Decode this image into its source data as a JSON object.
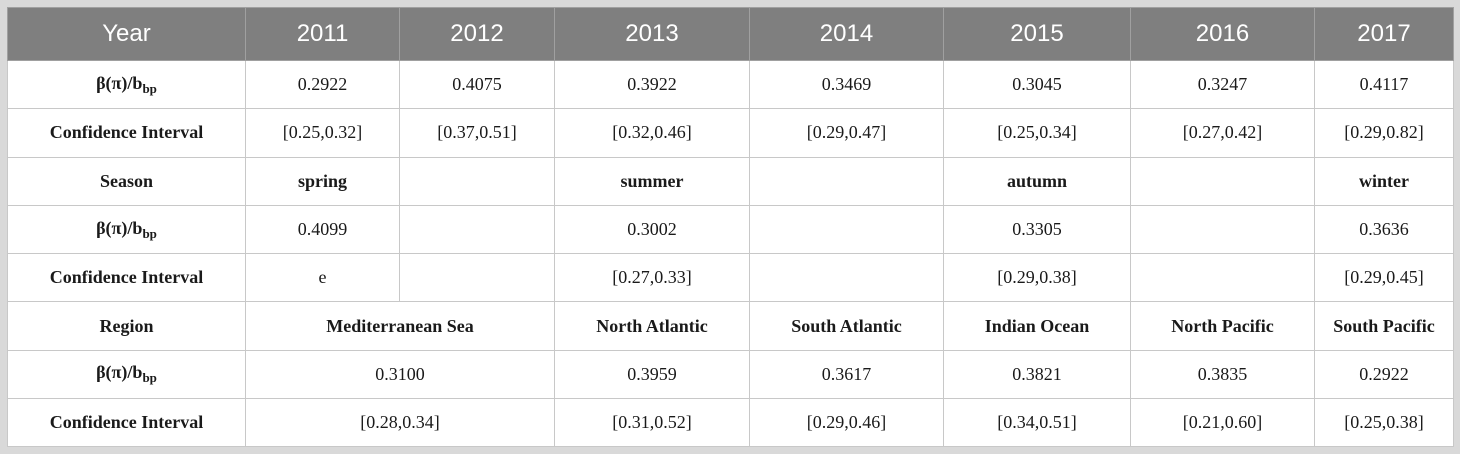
{
  "header": {
    "label": "Year",
    "years": [
      "2011",
      "2012",
      "2013",
      "2014",
      "2015",
      "2016",
      "2017"
    ]
  },
  "ratio_label": {
    "main": "β(π)/b",
    "sub": "bp"
  },
  "ci_label": "Confidence Interval",
  "year_section": {
    "ratios": [
      "0.2922",
      "0.4075",
      "0.3922",
      "0.3469",
      "0.3045",
      "0.3247",
      "0.4117"
    ],
    "cis": [
      "[0.25,0.32]",
      "[0.37,0.51]",
      "[0.32,0.46]",
      "[0.29,0.47]",
      "[0.25,0.34]",
      "[0.27,0.42]",
      "[0.29,0.82]"
    ]
  },
  "season_section": {
    "label": "Season",
    "seasons": [
      "spring",
      "summer",
      "autumn",
      "winter"
    ],
    "ratios": [
      "0.4099",
      "0.3002",
      "0.3305",
      "0.3636"
    ],
    "cis": [
      "e",
      "[0.27,0.33]",
      "[0.29,0.38]",
      "[0.29,0.45]"
    ]
  },
  "region_section": {
    "label": "Region",
    "regions": [
      "Mediterranean Sea",
      "North Atlantic",
      "South Atlantic",
      "Indian Ocean",
      "North Pacific",
      "South Pacific"
    ],
    "ratios": [
      "0.3100",
      "0.3959",
      "0.3617",
      "0.3821",
      "0.3835",
      "0.2922"
    ],
    "cis": [
      "[0.28,0.34]",
      "[0.31,0.52]",
      "[0.29,0.46]",
      "[0.34,0.51]",
      "[0.21,0.60]",
      "[0.25,0.38]"
    ]
  }
}
